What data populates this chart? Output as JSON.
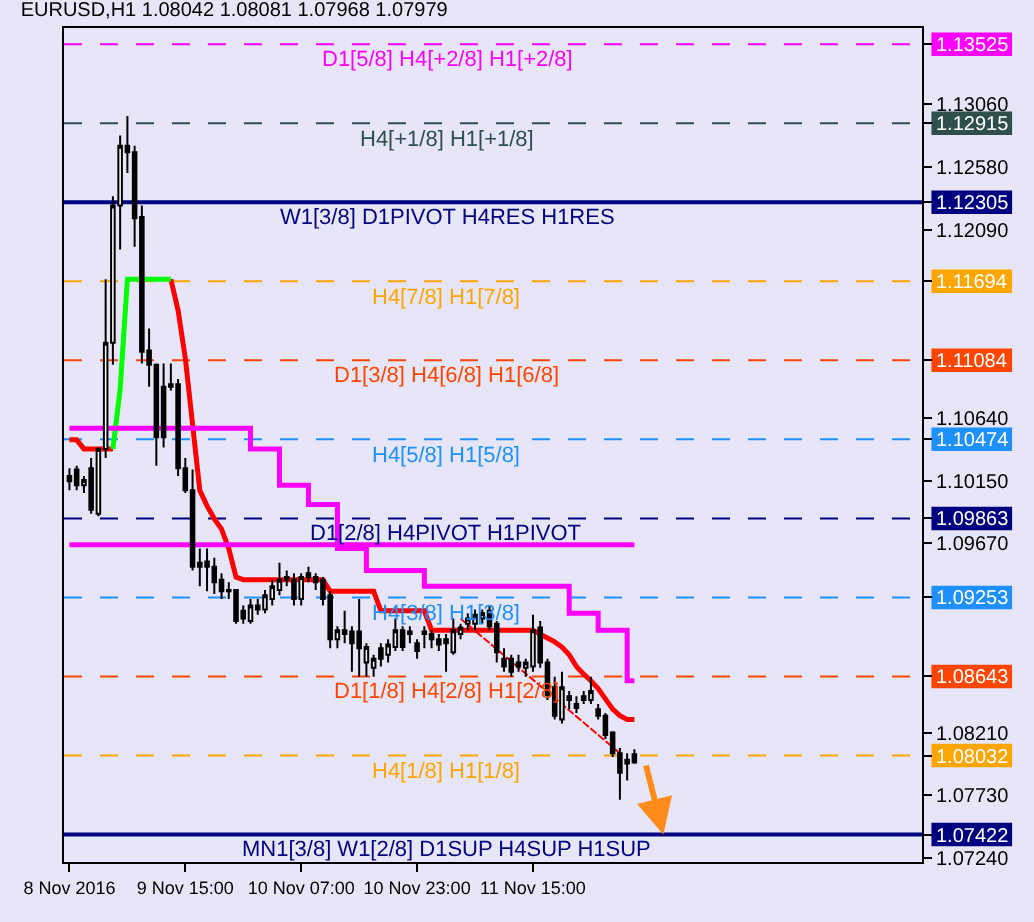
{
  "chart_data": {
    "type": "candlestick",
    "title": "EURUSD,H1 1.08042 1.08081 1.07968 1.07979",
    "categories": [
      "8 Nov 2016",
      null,
      null,
      null,
      null,
      null,
      null,
      null,
      null,
      null,
      null,
      null,
      null,
      null,
      null,
      null,
      "9 Nov 15:00",
      null,
      null,
      null,
      null,
      null,
      null,
      null,
      null,
      null,
      null,
      null,
      null,
      null,
      null,
      null,
      "10 Nov 07:00",
      null,
      null,
      null,
      null,
      null,
      null,
      null,
      null,
      null,
      null,
      null,
      null,
      null,
      null,
      null,
      "10 Nov 23:00",
      null,
      null,
      null,
      null,
      null,
      null,
      null,
      null,
      null,
      null,
      null,
      null,
      null,
      null,
      null,
      "11 Nov 15:00",
      null,
      null,
      null,
      null,
      null,
      null,
      null,
      null,
      null,
      null,
      null,
      null,
      null,
      null
    ],
    "ohlc": [
      [
        1.1019,
        1.1025,
        1.1008,
        1.1015
      ],
      [
        1.1024,
        1.1027,
        1.1008,
        1.1012
      ],
      [
        1.1012,
        1.1019,
        1.1006,
        1.1016
      ],
      [
        1.1025,
        1.1033,
        1.099,
        1.0993
      ],
      [
        1.099,
        1.1041,
        1.0988,
        1.104
      ],
      [
        1.104,
        1.1171,
        1.1033,
        1.1122
      ],
      [
        1.1122,
        1.1235,
        1.1105,
        1.1228
      ],
      [
        1.1228,
        1.1282,
        1.1194,
        1.1274
      ],
      [
        1.1274,
        1.1297,
        1.1253,
        1.1269
      ],
      [
        1.1269,
        1.1274,
        1.1196,
        1.1218
      ],
      [
        1.1219,
        1.1228,
        1.1106,
        1.1115
      ],
      [
        1.1116,
        1.1133,
        1.1088,
        1.1105
      ],
      [
        1.1105,
        1.1106,
        1.1027,
        1.1049
      ],
      [
        1.1088,
        1.1106,
        1.1041,
        1.1049
      ],
      [
        1.109,
        1.1106,
        1.1085,
        1.1088
      ],
      [
        1.109,
        1.1094,
        1.1019,
        1.1025
      ],
      [
        1.1025,
        1.1033,
        1.1006,
        1.1008
      ],
      [
        1.1008,
        1.1024,
        1.0946,
        1.0949
      ],
      [
        1.0952,
        1.0963,
        1.0934,
        1.0949
      ],
      [
        1.0953,
        1.0963,
        1.093,
        1.0949
      ],
      [
        1.0949,
        1.0956,
        1.0928,
        1.0937
      ],
      [
        1.0939,
        1.0944,
        1.0924,
        1.093
      ],
      [
        1.0931,
        1.0937,
        1.0924,
        1.093
      ],
      [
        1.0931,
        1.0931,
        1.0905,
        1.0907
      ],
      [
        1.0915,
        1.0919,
        1.0905,
        1.0909
      ],
      [
        1.0907,
        1.0924,
        1.0905,
        1.0919
      ],
      [
        1.0919,
        1.0924,
        1.0912,
        1.0916
      ],
      [
        1.0916,
        1.0931,
        1.0913,
        1.0927
      ],
      [
        1.0924,
        1.0939,
        1.0919,
        1.0934
      ],
      [
        1.0931,
        1.0952,
        1.0927,
        1.0939
      ],
      [
        1.0939,
        1.0946,
        1.0934,
        1.0941
      ],
      [
        1.0939,
        1.0944,
        1.0919,
        1.0924
      ],
      [
        1.0924,
        1.0944,
        1.0919,
        1.0941
      ],
      [
        1.0941,
        1.0949,
        1.0937,
        1.0944
      ],
      [
        1.0941,
        1.0944,
        1.0931,
        1.0937
      ],
      [
        1.0939,
        1.0941,
        1.0919,
        1.0924
      ],
      [
        1.0927,
        1.093,
        1.0886,
        1.0893
      ],
      [
        1.0893,
        1.0903,
        1.0886,
        1.09
      ],
      [
        1.09,
        1.0915,
        1.089,
        1.0897
      ],
      [
        1.0899,
        1.0903,
        1.0868,
        1.089
      ],
      [
        1.0899,
        1.0924,
        1.0864,
        1.0886
      ],
      [
        1.0875,
        1.089,
        1.0864,
        1.0887
      ],
      [
        1.0871,
        1.0881,
        1.0864,
        1.0878
      ],
      [
        1.0886,
        1.089,
        1.0872,
        1.0878
      ],
      [
        1.0881,
        1.0893,
        1.0875,
        1.0889
      ],
      [
        1.0887,
        1.0909,
        1.0884,
        1.09
      ],
      [
        1.09,
        1.0903,
        1.0884,
        1.0887
      ],
      [
        1.0897,
        1.0903,
        1.089,
        1.0899
      ],
      [
        1.089,
        1.0893,
        1.0878,
        1.0884
      ],
      [
        1.0899,
        1.0903,
        1.0886,
        1.0897
      ],
      [
        1.0897,
        1.09,
        1.0886,
        1.0893
      ],
      [
        1.0893,
        1.0897,
        1.0884,
        1.0889
      ],
      [
        1.0893,
        1.0897,
        1.0868,
        1.089
      ],
      [
        1.0883,
        1.0909,
        1.0881,
        1.09
      ],
      [
        1.0897,
        1.0905,
        1.0893,
        1.0902
      ],
      [
        1.0905,
        1.0913,
        1.09,
        1.0909
      ],
      [
        1.0905,
        1.0916,
        1.09,
        1.0912
      ],
      [
        1.0909,
        1.0916,
        1.0905,
        1.0913
      ],
      [
        1.0915,
        1.0919,
        1.09,
        1.0903
      ],
      [
        1.0905,
        1.0907,
        1.0875,
        1.0883
      ],
      [
        1.0878,
        1.0886,
        1.0868,
        1.0872
      ],
      [
        1.0878,
        1.0881,
        1.0864,
        1.0868
      ],
      [
        1.0875,
        1.0881,
        1.0868,
        1.0872
      ],
      [
        1.0871,
        1.0878,
        1.0864,
        1.0875
      ],
      [
        1.0872,
        1.0912,
        1.0868,
        1.09
      ],
      [
        1.0902,
        1.0907,
        1.0871,
        1.0875
      ],
      [
        1.0875,
        1.0878,
        1.0846,
        1.085
      ],
      [
        1.0856,
        1.0864,
        1.0831,
        1.0834
      ],
      [
        1.0831,
        1.0868,
        1.0828,
        1.0856
      ],
      [
        1.0849,
        1.0853,
        1.0839,
        1.0846
      ],
      [
        1.0843,
        1.0849,
        1.0836,
        1.084
      ],
      [
        1.0846,
        1.0853,
        1.0843,
        1.0849
      ],
      [
        1.0846,
        1.0864,
        1.0843,
        1.0853
      ],
      [
        1.0839,
        1.0843,
        1.0831,
        1.0834
      ],
      [
        1.0834,
        1.0836,
        1.0816,
        1.0819
      ],
      [
        1.0821,
        1.0822,
        1.0802,
        1.0805
      ],
      [
        1.0805,
        1.0809,
        1.0769,
        1.079
      ],
      [
        1.08,
        1.0805,
        1.0784,
        1.0797
      ],
      [
        1.08042,
        1.08081,
        1.07968,
        1.07979
      ]
    ],
    "series": [
      {
        "type": "line",
        "color": "#ff0000",
        "values": [
          1.1047,
          1.1047,
          1.104,
          1.104,
          1.104,
          1.104,
          1.104,
          null,
          null,
          null,
          null,
          null,
          null,
          null,
          null,
          null,
          null,
          null,
          null,
          null,
          null,
          null,
          null,
          null,
          null,
          null,
          null,
          null,
          null,
          null,
          null,
          null,
          null,
          null,
          null,
          null,
          null,
          null,
          null,
          null,
          null,
          null,
          null,
          null,
          null,
          null,
          null,
          null,
          null,
          null,
          null,
          null,
          null,
          null,
          null,
          null,
          null,
          null,
          null,
          null,
          null,
          null,
          null,
          null,
          null,
          null,
          null,
          null,
          null,
          null,
          null,
          null,
          null,
          null,
          null,
          null,
          null,
          null,
          null
        ]
      },
      {
        "type": "line",
        "color": "#ff0000",
        "values": [
          null,
          null,
          null,
          null,
          null,
          null,
          null,
          null,
          null,
          null,
          null,
          null,
          null,
          null,
          1.1171,
          1.1147,
          1.111,
          1.1059,
          1.1008,
          1.0996,
          1.0986,
          1.0978,
          1.0963,
          1.0941,
          1.0939,
          1.0939,
          1.0939,
          1.0939,
          1.0939,
          1.0939,
          1.0939,
          1.0939,
          1.0939,
          1.0939,
          1.0939,
          1.0939,
          1.093,
          1.093,
          1.093,
          1.093,
          1.093,
          1.093,
          1.093,
          1.0915,
          1.0915,
          1.0915,
          1.0915,
          1.0915,
          1.0915,
          1.0915,
          1.09,
          1.09,
          1.09,
          1.09,
          1.09,
          1.09,
          1.09,
          1.09,
          1.09,
          1.09,
          1.09,
          1.09,
          1.09,
          1.09,
          1.09,
          1.0897,
          1.0894,
          1.0891,
          1.0887,
          1.0881,
          1.0872,
          1.0866,
          1.0861,
          1.0855,
          1.0847,
          1.0839,
          1.0834,
          1.0831,
          1.0831
        ]
      },
      {
        "type": "line",
        "color": "#00ff00",
        "values": [
          null,
          null,
          null,
          null,
          null,
          null,
          1.104,
          1.1086,
          1.1171,
          1.1171,
          1.1171,
          1.1171,
          1.1171,
          1.1171,
          1.1171,
          null,
          null,
          null,
          null,
          null,
          null,
          null,
          null,
          null,
          null,
          null,
          null,
          null,
          null,
          null,
          null,
          null,
          null,
          null,
          null,
          null,
          null,
          null,
          null,
          null,
          null,
          null,
          null,
          null,
          null,
          null,
          null,
          null,
          null,
          null,
          null,
          null,
          null,
          null,
          null,
          null,
          null,
          null,
          null,
          null,
          null,
          null,
          null,
          null,
          null,
          null,
          null,
          null,
          null,
          null,
          null,
          null,
          null,
          null,
          null,
          null,
          null,
          null,
          null
        ]
      },
      {
        "type": "step",
        "color": "#ff00ff",
        "values": [
          1.1056,
          1.1056,
          1.1056,
          1.1056,
          1.1056,
          1.1056,
          1.1056,
          1.1056,
          1.1056,
          1.1056,
          1.1056,
          1.1056,
          1.1056,
          1.1056,
          1.1056,
          1.1056,
          1.1056,
          1.1056,
          1.1056,
          1.1056,
          1.1056,
          1.1056,
          1.1056,
          1.1056,
          1.1056,
          1.104,
          1.104,
          1.104,
          1.104,
          1.1012,
          1.1012,
          1.1012,
          1.1012,
          1.0997,
          1.0997,
          1.0997,
          1.0997,
          1.0963,
          1.0963,
          1.0963,
          1.0963,
          1.0946,
          1.0946,
          1.0946,
          1.0946,
          1.0946,
          1.0946,
          1.0946,
          1.0946,
          1.0934,
          1.0934,
          1.0934,
          1.0934,
          1.0934,
          1.0934,
          1.0934,
          1.0934,
          1.0934,
          1.0934,
          1.0934,
          1.0934,
          1.0934,
          1.0934,
          1.0934,
          1.0934,
          1.0934,
          1.0934,
          1.0934,
          1.0934,
          1.0913,
          1.0913,
          1.0913,
          1.0913,
          1.09,
          1.09,
          1.09,
          1.09,
          1.0861,
          1.0861
        ]
      },
      {
        "type": "line",
        "color": "#ff00ff",
        "values": [
          1.0966,
          1.0966,
          1.0966,
          1.0966,
          1.0966,
          1.0966,
          1.0966,
          1.0966,
          1.0966,
          1.0966,
          1.0966,
          1.0966,
          1.0966,
          1.0966,
          1.0966,
          1.0966,
          1.0966,
          1.0966,
          1.0966,
          1.0966,
          1.0966,
          1.0966,
          1.0966,
          1.0966,
          1.0966,
          1.0966,
          1.0966,
          1.0966,
          1.0966,
          1.0966,
          1.0966,
          1.0966,
          1.0966,
          1.0966,
          1.0966,
          1.0966,
          1.0966,
          1.0966,
          1.0966,
          1.0966,
          1.0966,
          1.0966,
          1.0966,
          1.0966,
          1.0966,
          1.0966,
          1.0966,
          1.0966,
          1.0966,
          1.0966,
          1.0966,
          1.0966,
          1.0966,
          1.0966,
          1.0966,
          1.0966,
          1.0966,
          1.0966,
          1.0966,
          1.0966,
          1.0966,
          1.0966,
          1.0966,
          1.0966,
          1.0966,
          1.0966,
          1.0966,
          1.0966,
          1.0966,
          1.0966,
          1.0966,
          1.0966,
          1.0966,
          1.0966,
          1.0966,
          1.0966,
          1.0966,
          1.0966,
          1.0966
        ]
      },
      {
        "type": "line",
        "color": "#ff0000",
        "line_style": "dashed",
        "values": [
          null,
          null,
          null,
          null,
          null,
          null,
          null,
          null,
          null,
          null,
          null,
          null,
          null,
          null,
          null,
          null,
          null,
          null,
          null,
          null,
          null,
          null,
          null,
          null,
          null,
          null,
          null,
          null,
          null,
          null,
          null,
          null,
          null,
          null,
          null,
          null,
          null,
          null,
          null,
          null,
          null,
          null,
          null,
          null,
          null,
          null,
          null,
          null,
          null,
          null,
          null,
          null,
          null,
          null,
          1.0909,
          null,
          null,
          null,
          null,
          null,
          null,
          null,
          null,
          null,
          null,
          null,
          null,
          null,
          null,
          null,
          null,
          null,
          null,
          null,
          null,
          null,
          1.0805,
          null,
          null
        ]
      }
    ],
    "ref_lines": [
      {
        "axis": "y",
        "value": 1.13525,
        "label": "D1[5/8] H4[+2/8] H1[+2/8]",
        "color": "#ff00ff",
        "line_style": "dashed"
      },
      {
        "axis": "y",
        "value": 1.12915,
        "label": "H4[+1/8] H1[+1/8]",
        "color": "#2f4f4f",
        "line_style": "dashed"
      },
      {
        "axis": "y",
        "value": 1.12305,
        "label": "W1[3/8] D1PIVOT H4RES H1RES",
        "color": "#000080",
        "line_style": "solid"
      },
      {
        "axis": "y",
        "value": 1.11694,
        "label": "H4[7/8] H1[7/8]",
        "color": "#ffa500",
        "line_style": "dashed"
      },
      {
        "axis": "y",
        "value": 1.11084,
        "label": "D1[3/8] H4[6/8] H1[6/8]",
        "color": "#ff4500",
        "line_style": "dashed"
      },
      {
        "axis": "y",
        "value": 1.10474,
        "label": "H4[5/8] H1[5/8]",
        "color": "#1e90ff",
        "line_style": "dashed"
      },
      {
        "axis": "y",
        "value": 1.09863,
        "label": "D1[2/8] H4PIVOT H1PIVOT",
        "color": "#000080",
        "line_style": "dashed"
      },
      {
        "axis": "y",
        "value": 1.09253,
        "label": "H4[3/8] H1[3/8]",
        "color": "#1e90ff",
        "line_style": "dashed"
      },
      {
        "axis": "y",
        "value": 1.08643,
        "label": "D1[1/8] H4[2/8] H1[2/8]",
        "color": "#ff4500",
        "line_style": "dashed"
      },
      {
        "axis": "y",
        "value": 1.08032,
        "label": "H4[1/8] H1[1/8]",
        "color": "#ffa500",
        "line_style": "dashed"
      },
      {
        "axis": "y",
        "value": 1.07422,
        "label": "MN1[3/8] W1[2/8] D1SUP H4SUP H1SUP",
        "color": "#000080",
        "line_style": "solid"
      }
    ],
    "ylim": [
      1.0721,
      1.1365
    ],
    "yticks": [
      {
        "value": 1.0724,
        "label": "1.07240"
      },
      1.07422,
      {
        "value": 1.0773,
        "label": "1.07730"
      },
      1.08032,
      {
        "value": 1.0821,
        "label": "1.08210"
      },
      1.08643,
      1.09253,
      {
        "value": 1.0967,
        "label": "1.09670"
      },
      1.09863,
      {
        "value": 1.1015,
        "label": "1.10150"
      },
      1.10474,
      {
        "value": 1.1064,
        "label": "1.10640"
      },
      1.11084,
      1.11694,
      {
        "value": 1.1209,
        "label": "1.12090"
      },
      1.12305,
      {
        "value": 1.1258,
        "label": "1.12580"
      },
      1.12915,
      {
        "value": 1.1306,
        "label": "1.13060"
      },
      1.13525
    ],
    "grid": false
  }
}
